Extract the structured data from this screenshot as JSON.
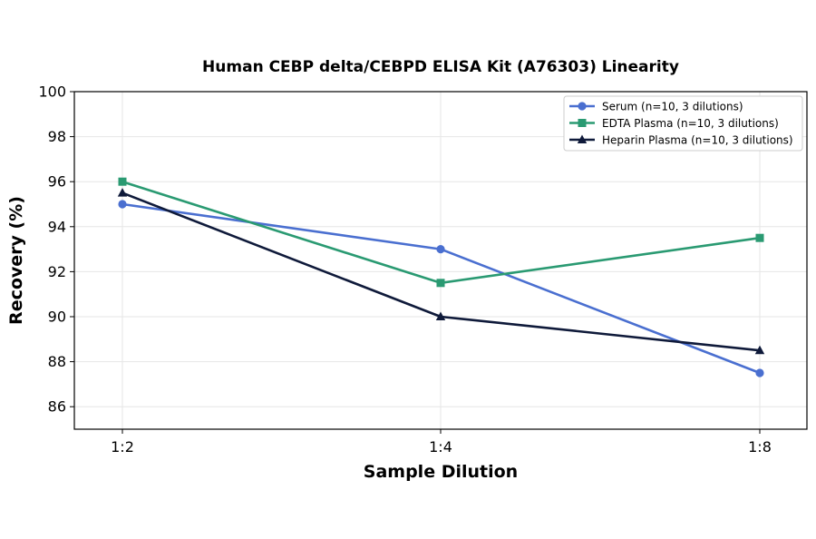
{
  "chart_data": {
    "type": "line",
    "title": "Human CEBP delta/CEBPD ELISA Kit (A76303) Linearity",
    "xlabel": "Sample Dilution",
    "ylabel": "Recovery (%)",
    "categories": [
      "1:2",
      "1:4",
      "1:8"
    ],
    "ylim": [
      85,
      100
    ],
    "yticks": [
      86,
      88,
      90,
      92,
      94,
      96,
      98,
      100
    ],
    "grid": true,
    "legend_position": "top-right",
    "series": [
      {
        "name": "Serum (n=10, 3 dilutions)",
        "values": [
          95,
          93,
          87.5
        ],
        "color": "#4a6fd0",
        "marker": "circle"
      },
      {
        "name": "EDTA Plasma (n=10, 3 dilutions)",
        "values": [
          96,
          91.5,
          93.5
        ],
        "color": "#2a9a72",
        "marker": "square"
      },
      {
        "name": "Heparin Plasma (n=10, 3 dilutions)",
        "values": [
          95.5,
          90,
          88.5
        ],
        "color": "#0f1a3a",
        "marker": "triangle"
      }
    ]
  }
}
